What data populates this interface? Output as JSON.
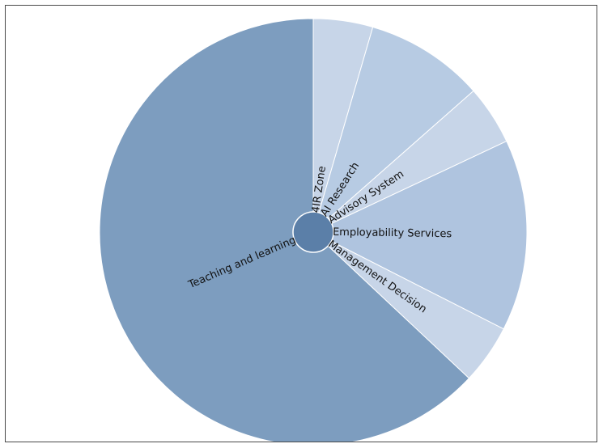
{
  "chart_data": {
    "type": "pie",
    "title": "",
    "center_color": "#5b7fa8",
    "categories": [
      "4IR Zone",
      "AI Research",
      "Advisory System",
      "Employability Services",
      "Management Decision",
      "Teaching and learning"
    ],
    "values": [
      4.5,
      9.0,
      4.5,
      14.5,
      4.5,
      63.0
    ],
    "colors": [
      "#c7d5e8",
      "#b7cbe3",
      "#c7d5e8",
      "#afc4df",
      "#c7d5e8",
      "#7d9dbf"
    ],
    "legend": "none"
  }
}
